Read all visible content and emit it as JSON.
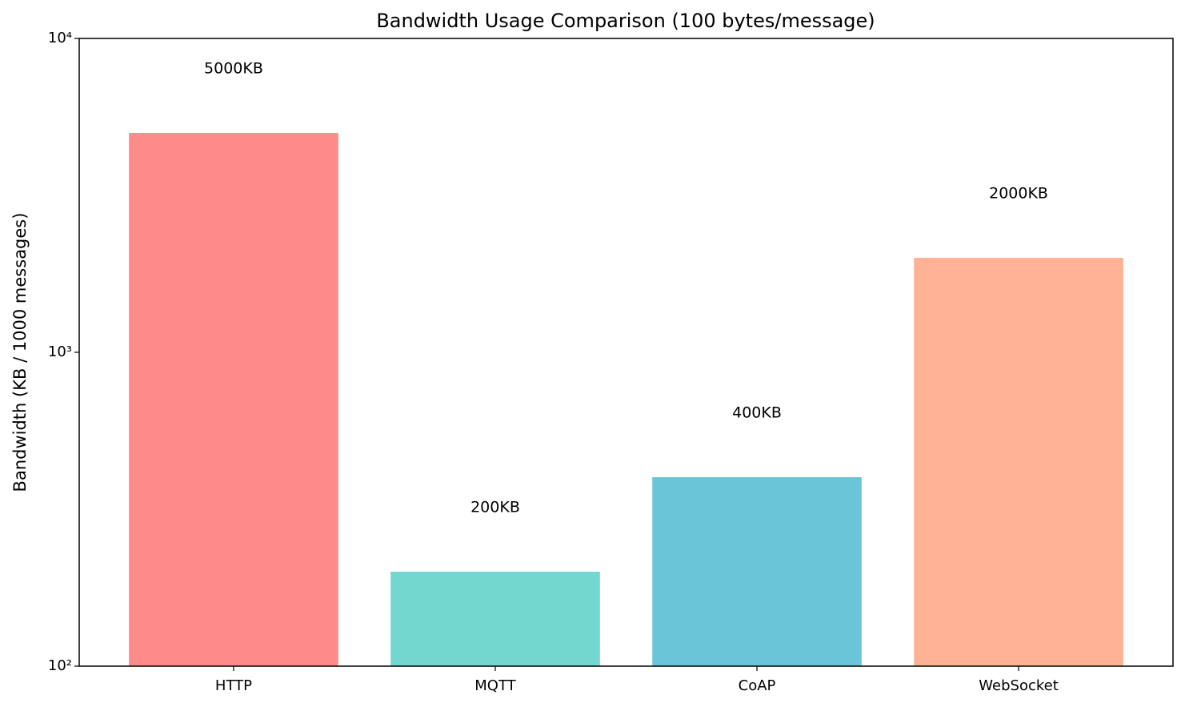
{
  "chart_data": {
    "type": "bar",
    "title": "Bandwidth Usage Comparison (100 bytes/message)",
    "y_label": "Bandwidth (KB / 1000 messages)",
    "categories": [
      "HTTP",
      "MQTT",
      "CoAP",
      "WebSocket"
    ],
    "values": [
      5000,
      200,
      400,
      2000
    ],
    "value_labels": [
      "5000KB",
      "200KB",
      "400KB",
      "2000KB"
    ],
    "colors": [
      "#ff8a8a",
      "#74d7cf",
      "#6ac5d9",
      "#ffb294"
    ],
    "ylim": [
      100,
      10000
    ],
    "yticks": [
      {
        "value": 100,
        "label": "10²"
      },
      {
        "value": 1000,
        "label": "10³"
      },
      {
        "value": 10000,
        "label": "10⁴"
      }
    ],
    "log_y": true
  }
}
